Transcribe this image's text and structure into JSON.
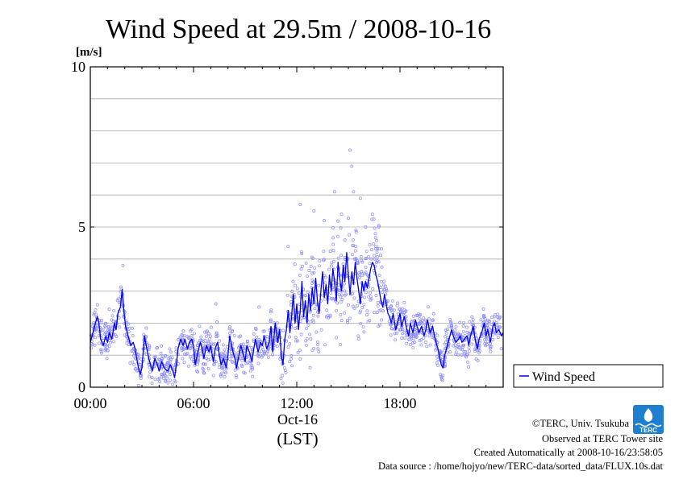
{
  "chart_data": {
    "type": "line",
    "title": "Wind Speed at 29.5m / 2008-10-16",
    "ylabel": "[m/s]",
    "ylim": [
      0,
      10
    ],
    "yticks": [
      0,
      5,
      10
    ],
    "y_minor_grid_step": 1,
    "xlim_hours": [
      0,
      24
    ],
    "xticks": [
      {
        "hour": 0,
        "label": "00:00"
      },
      {
        "hour": 6,
        "label": "06:00"
      },
      {
        "hour": 12,
        "label": "12:00"
      },
      {
        "hour": 18,
        "label": "18:00"
      }
    ],
    "date_label": "Oct-16",
    "xlabel": "(LST)",
    "legend": {
      "entry": "Wind Speed",
      "placement": "right-bottom"
    },
    "grid": true,
    "series": [
      {
        "name": "Wind Speed",
        "style": "line",
        "color": "#0000ee",
        "points": [
          [
            0.0,
            1.4
          ],
          [
            0.25,
            1.9
          ],
          [
            0.4,
            2.2
          ],
          [
            0.5,
            2.0
          ],
          [
            0.6,
            1.5
          ],
          [
            0.75,
            1.3
          ],
          [
            0.9,
            1.6
          ],
          [
            1.0,
            1.4
          ],
          [
            1.1,
            1.7
          ],
          [
            1.25,
            1.5
          ],
          [
            1.4,
            2.0
          ],
          [
            1.5,
            1.8
          ],
          [
            1.6,
            2.3
          ],
          [
            1.75,
            2.5
          ],
          [
            1.85,
            3.05
          ],
          [
            1.95,
            2.4
          ],
          [
            2.05,
            1.9
          ],
          [
            2.2,
            1.6
          ],
          [
            2.35,
            1.3
          ],
          [
            2.5,
            1.4
          ],
          [
            2.6,
            1.2
          ],
          [
            2.7,
            0.9
          ],
          [
            2.8,
            0.6
          ],
          [
            2.9,
            0.4
          ],
          [
            3.0,
            0.6
          ],
          [
            3.15,
            1.6
          ],
          [
            3.25,
            1.3
          ],
          [
            3.4,
            0.9
          ],
          [
            3.5,
            0.7
          ],
          [
            3.6,
            0.5
          ],
          [
            3.75,
            0.9
          ],
          [
            3.9,
            0.7
          ],
          [
            4.0,
            0.5
          ],
          [
            4.15,
            0.8
          ],
          [
            4.3,
            0.6
          ],
          [
            4.5,
            0.5
          ],
          [
            4.65,
            0.7
          ],
          [
            4.8,
            0.5
          ],
          [
            4.9,
            0.3
          ],
          [
            5.0,
            0.7
          ],
          [
            5.1,
            1.2
          ],
          [
            5.25,
            1.5
          ],
          [
            5.4,
            1.3
          ],
          [
            5.5,
            1.5
          ],
          [
            5.65,
            1.2
          ],
          [
            5.75,
            1.4
          ],
          [
            5.9,
            1.5
          ],
          [
            6.0,
            1.3
          ],
          [
            6.1,
            0.7
          ],
          [
            6.25,
            1.1
          ],
          [
            6.4,
            1.4
          ],
          [
            6.5,
            1.2
          ],
          [
            6.6,
            0.9
          ],
          [
            6.75,
            1.3
          ],
          [
            6.9,
            1.1
          ],
          [
            7.0,
            1.3
          ],
          [
            7.15,
            0.8
          ],
          [
            7.25,
            1.2
          ],
          [
            7.4,
            1.4
          ],
          [
            7.5,
            1.0
          ],
          [
            7.6,
            0.7
          ],
          [
            7.75,
            0.9
          ],
          [
            7.9,
            0.6
          ],
          [
            8.0,
            1.0
          ],
          [
            8.1,
            1.6
          ],
          [
            8.25,
            1.2
          ],
          [
            8.4,
            0.9
          ],
          [
            8.5,
            0.6
          ],
          [
            8.6,
            0.9
          ],
          [
            8.75,
            1.3
          ],
          [
            8.9,
            1.0
          ],
          [
            9.0,
            0.8
          ],
          [
            9.1,
            1.3
          ],
          [
            9.25,
            1.1
          ],
          [
            9.4,
            0.8
          ],
          [
            9.5,
            1.2
          ],
          [
            9.6,
            1.5
          ],
          [
            9.75,
            1.1
          ],
          [
            9.9,
            1.4
          ],
          [
            10.0,
            1.3
          ],
          [
            10.1,
            1.6
          ],
          [
            10.25,
            1.2
          ],
          [
            10.4,
            1.4
          ],
          [
            10.5,
            1.9
          ],
          [
            10.6,
            1.1
          ],
          [
            10.75,
            2.0
          ],
          [
            10.9,
            1.4
          ],
          [
            11.0,
            1.8
          ],
          [
            11.1,
            1.0
          ],
          [
            11.2,
            0.7
          ],
          [
            11.3,
            1.5
          ],
          [
            11.4,
            1.8
          ],
          [
            11.5,
            2.4
          ],
          [
            11.6,
            1.7
          ],
          [
            11.7,
            2.2
          ],
          [
            11.8,
            2.9
          ],
          [
            11.9,
            2.0
          ],
          [
            12.0,
            2.6
          ],
          [
            12.1,
            1.8
          ],
          [
            12.2,
            2.4
          ],
          [
            12.3,
            3.3
          ],
          [
            12.4,
            2.2
          ],
          [
            12.5,
            2.7
          ],
          [
            12.6,
            2.0
          ],
          [
            12.7,
            2.9
          ],
          [
            12.8,
            2.4
          ],
          [
            12.9,
            3.1
          ],
          [
            13.0,
            2.6
          ],
          [
            13.1,
            3.4
          ],
          [
            13.2,
            2.7
          ],
          [
            13.3,
            2.3
          ],
          [
            13.4,
            3.0
          ],
          [
            13.5,
            3.6
          ],
          [
            13.6,
            2.8
          ],
          [
            13.7,
            3.2
          ],
          [
            13.8,
            2.6
          ],
          [
            13.9,
            3.5
          ],
          [
            14.0,
            3.0
          ],
          [
            14.1,
            3.7
          ],
          [
            14.2,
            3.3
          ],
          [
            14.3,
            2.7
          ],
          [
            14.4,
            3.9
          ],
          [
            14.5,
            3.4
          ],
          [
            14.6,
            3.0
          ],
          [
            14.7,
            3.8
          ],
          [
            14.8,
            3.3
          ],
          [
            14.9,
            4.2
          ],
          [
            15.0,
            3.5
          ],
          [
            15.1,
            2.9
          ],
          [
            15.2,
            3.6
          ],
          [
            15.3,
            3.2
          ],
          [
            15.4,
            3.9
          ],
          [
            15.5,
            3.4
          ],
          [
            15.6,
            3.0
          ],
          [
            15.7,
            2.6
          ],
          [
            15.8,
            3.3
          ],
          [
            15.9,
            3.0
          ],
          [
            16.0,
            3.3
          ],
          [
            16.1,
            3.1
          ],
          [
            16.2,
            3.4
          ],
          [
            16.3,
            3.7
          ],
          [
            16.4,
            3.9
          ],
          [
            16.5,
            3.8
          ],
          [
            16.6,
            3.5
          ],
          [
            16.7,
            3.3
          ],
          [
            16.8,
            3.0
          ],
          [
            16.9,
            2.7
          ],
          [
            17.0,
            2.5
          ],
          [
            17.1,
            2.9
          ],
          [
            17.2,
            2.6
          ],
          [
            17.3,
            2.3
          ],
          [
            17.4,
            2.2
          ],
          [
            17.5,
            2.0
          ],
          [
            17.6,
            2.3
          ],
          [
            17.75,
            1.8
          ],
          [
            17.9,
            2.1
          ],
          [
            18.0,
            2.3
          ],
          [
            18.1,
            1.9
          ],
          [
            18.25,
            2.2
          ],
          [
            18.4,
            1.8
          ],
          [
            18.5,
            1.6
          ],
          [
            18.6,
            2.0
          ],
          [
            18.75,
            1.7
          ],
          [
            18.9,
            2.1
          ],
          [
            19.0,
            1.9
          ],
          [
            19.1,
            1.7
          ],
          [
            19.25,
            1.9
          ],
          [
            19.4,
            1.6
          ],
          [
            19.5,
            1.8
          ],
          [
            19.6,
            2.1
          ],
          [
            19.75,
            1.7
          ],
          [
            19.9,
            1.9
          ],
          [
            20.0,
            1.6
          ],
          [
            20.1,
            1.4
          ],
          [
            20.25,
            1.1
          ],
          [
            20.4,
            0.7
          ],
          [
            20.5,
            0.6
          ],
          [
            20.6,
            1.0
          ],
          [
            20.75,
            1.3
          ],
          [
            20.9,
            1.6
          ],
          [
            21.0,
            1.8
          ],
          [
            21.1,
            1.6
          ],
          [
            21.25,
            1.4
          ],
          [
            21.4,
            1.5
          ],
          [
            21.5,
            1.6
          ],
          [
            21.6,
            1.4
          ],
          [
            21.75,
            1.5
          ],
          [
            21.9,
            1.6
          ],
          [
            22.0,
            1.3
          ],
          [
            22.1,
            1.6
          ],
          [
            22.25,
            1.9
          ],
          [
            22.4,
            1.4
          ],
          [
            22.5,
            1.2
          ],
          [
            22.6,
            1.5
          ],
          [
            22.75,
            1.7
          ],
          [
            22.9,
            2.0
          ],
          [
            23.0,
            1.6
          ],
          [
            23.1,
            1.8
          ],
          [
            23.25,
            1.4
          ],
          [
            23.4,
            1.9
          ],
          [
            23.5,
            2.0
          ],
          [
            23.6,
            1.7
          ],
          [
            23.75,
            1.8
          ],
          [
            23.9,
            1.6
          ],
          [
            24.0,
            1.7
          ]
        ]
      },
      {
        "name": "",
        "style": "scatter-circles",
        "color": "#8a8aff",
        "peak_points": [
          [
            1.9,
            3.8
          ],
          [
            11.5,
            4.4
          ],
          [
            12.2,
            5.7
          ],
          [
            13.0,
            5.5
          ],
          [
            13.6,
            5.2
          ],
          [
            14.2,
            6.1
          ],
          [
            14.6,
            5.4
          ],
          [
            15.1,
            7.4
          ],
          [
            15.2,
            6.9
          ],
          [
            15.3,
            6.1
          ],
          [
            15.7,
            5.9
          ],
          [
            16.0,
            5.0
          ],
          [
            16.4,
            5.4
          ],
          [
            16.6,
            4.4
          ],
          [
            7.3,
            2.6
          ],
          [
            9.8,
            2.5
          ]
        ]
      }
    ]
  },
  "credits": {
    "copyright": "©TERC, Univ. Tsukuba",
    "observed": "Observed at TERC Tower site",
    "created": "Created Automatically at 2008-10-16/23:58:05",
    "source": "Data source : /home/hojyo/new/TERC-data/sorted_data/FLUX.10s.dat",
    "logo_text": "TERC"
  },
  "colors": {
    "line": "#0000ee",
    "scatter": "#8a8aff",
    "grid": "#aaaaaa",
    "logo": "#1e7fd0"
  }
}
